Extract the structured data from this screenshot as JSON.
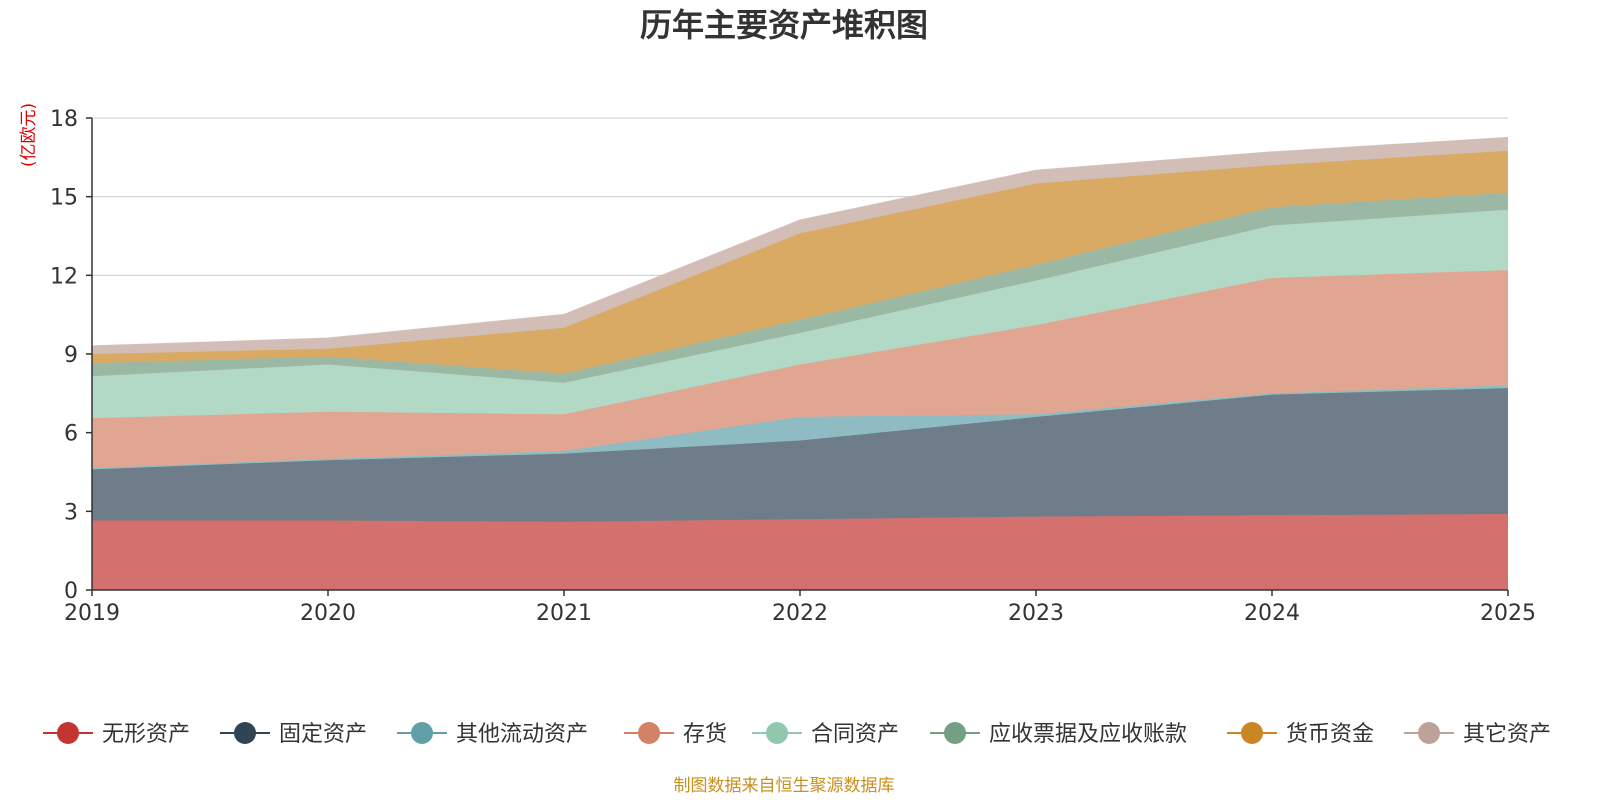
{
  "chart_data": {
    "type": "area",
    "title": "历年主要资产堆积图",
    "unit_label": "(亿欧元)",
    "xlabel": "",
    "ylabel": "(亿欧元)",
    "categories": [
      "2019",
      "2020",
      "2021",
      "2022",
      "2023",
      "2024",
      "2025"
    ],
    "ylim": [
      0,
      18
    ],
    "yticks": [
      0,
      3,
      6,
      9,
      12,
      15,
      18
    ],
    "stacked": true,
    "grid": true,
    "legend_position": "bottom",
    "series": [
      {
        "name": "无形资产",
        "color": "#c23531",
        "area_color": "#d4716f",
        "values": [
          2.65,
          2.65,
          2.6,
          2.7,
          2.8,
          2.85,
          2.9
        ]
      },
      {
        "name": "固定资产",
        "color": "#2f4554",
        "area_color": "#6e7d89",
        "values": [
          1.95,
          2.3,
          2.6,
          3.0,
          3.8,
          4.6,
          4.8
        ]
      },
      {
        "name": "其他流动资产",
        "color": "#61a0a8",
        "area_color": "#8fbcc2",
        "values": [
          0.05,
          0.05,
          0.1,
          0.9,
          0.1,
          0.05,
          0.1
        ]
      },
      {
        "name": "存货",
        "color": "#d48265",
        "area_color": "#e0a692",
        "values": [
          1.9,
          1.8,
          1.4,
          2.0,
          3.4,
          4.4,
          4.4
        ]
      },
      {
        "name": "合同资产",
        "color": "#91c7ae",
        "area_color": "#b2d8c6",
        "values": [
          1.6,
          1.8,
          1.2,
          1.2,
          1.7,
          2.0,
          2.3
        ]
      },
      {
        "name": "应收票据及应收账款",
        "color": "#749f83",
        "area_color": "#9bb8a5",
        "values": [
          0.5,
          0.3,
          0.35,
          0.5,
          0.6,
          0.7,
          0.65
        ]
      },
      {
        "name": "货币资金",
        "color": "#ca8622",
        "area_color": "#d9aa64",
        "values": [
          0.35,
          0.3,
          1.75,
          3.3,
          3.1,
          1.6,
          1.6
        ]
      },
      {
        "name": "其它资产",
        "color": "#bda29a",
        "area_color": "#d2bdb7",
        "values": [
          0.3,
          0.4,
          0.5,
          0.5,
          0.5,
          0.5,
          0.5
        ]
      }
    ]
  },
  "source_note": "制图数据来自恒生聚源数据库"
}
